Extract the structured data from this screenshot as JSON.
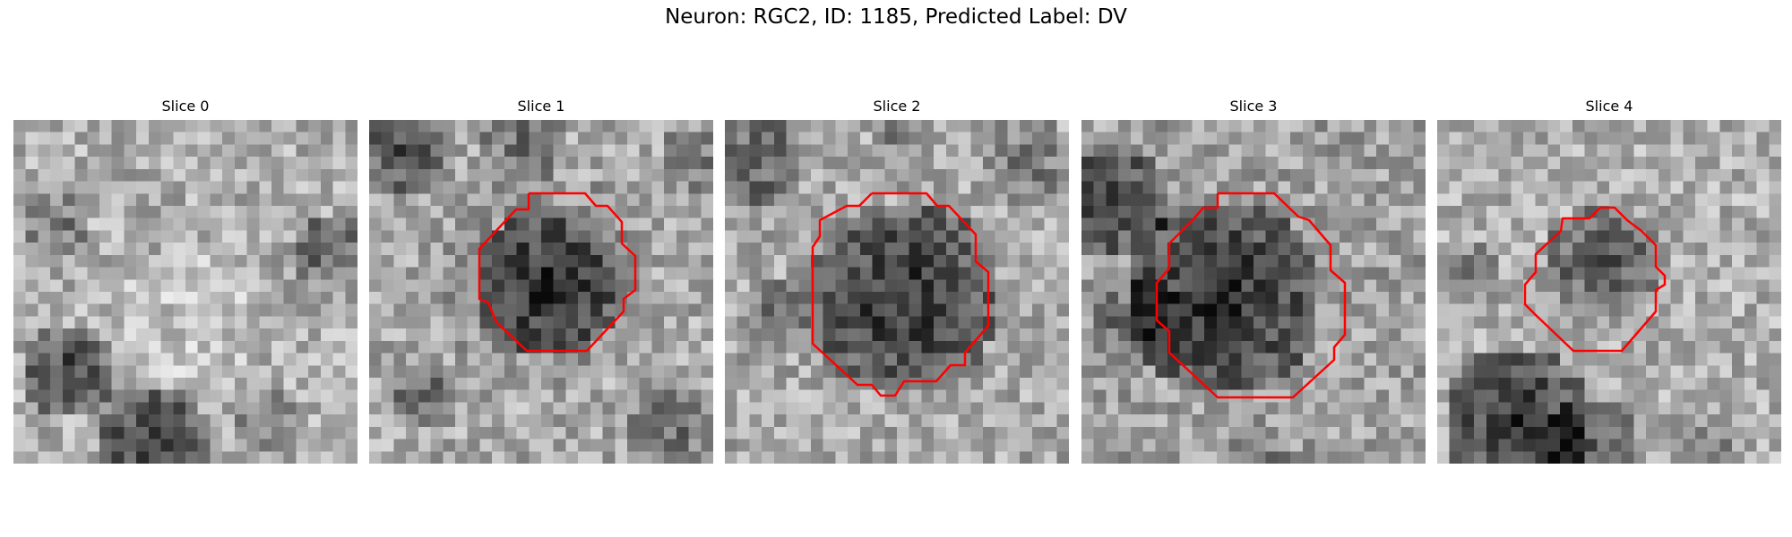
{
  "figure": {
    "title": "Neuron: RGC2, ID: 1185, Predicted Label: DV",
    "contour_color": "#ff0000",
    "colormap": "gray"
  },
  "slices": [
    {
      "title": "Slice 0",
      "has_contour": false
    },
    {
      "title": "Slice 1",
      "has_contour": true
    },
    {
      "title": "Slice 2",
      "has_contour": true
    },
    {
      "title": "Slice 3",
      "has_contour": true
    },
    {
      "title": "Slice 4",
      "has_contour": true
    }
  ]
}
